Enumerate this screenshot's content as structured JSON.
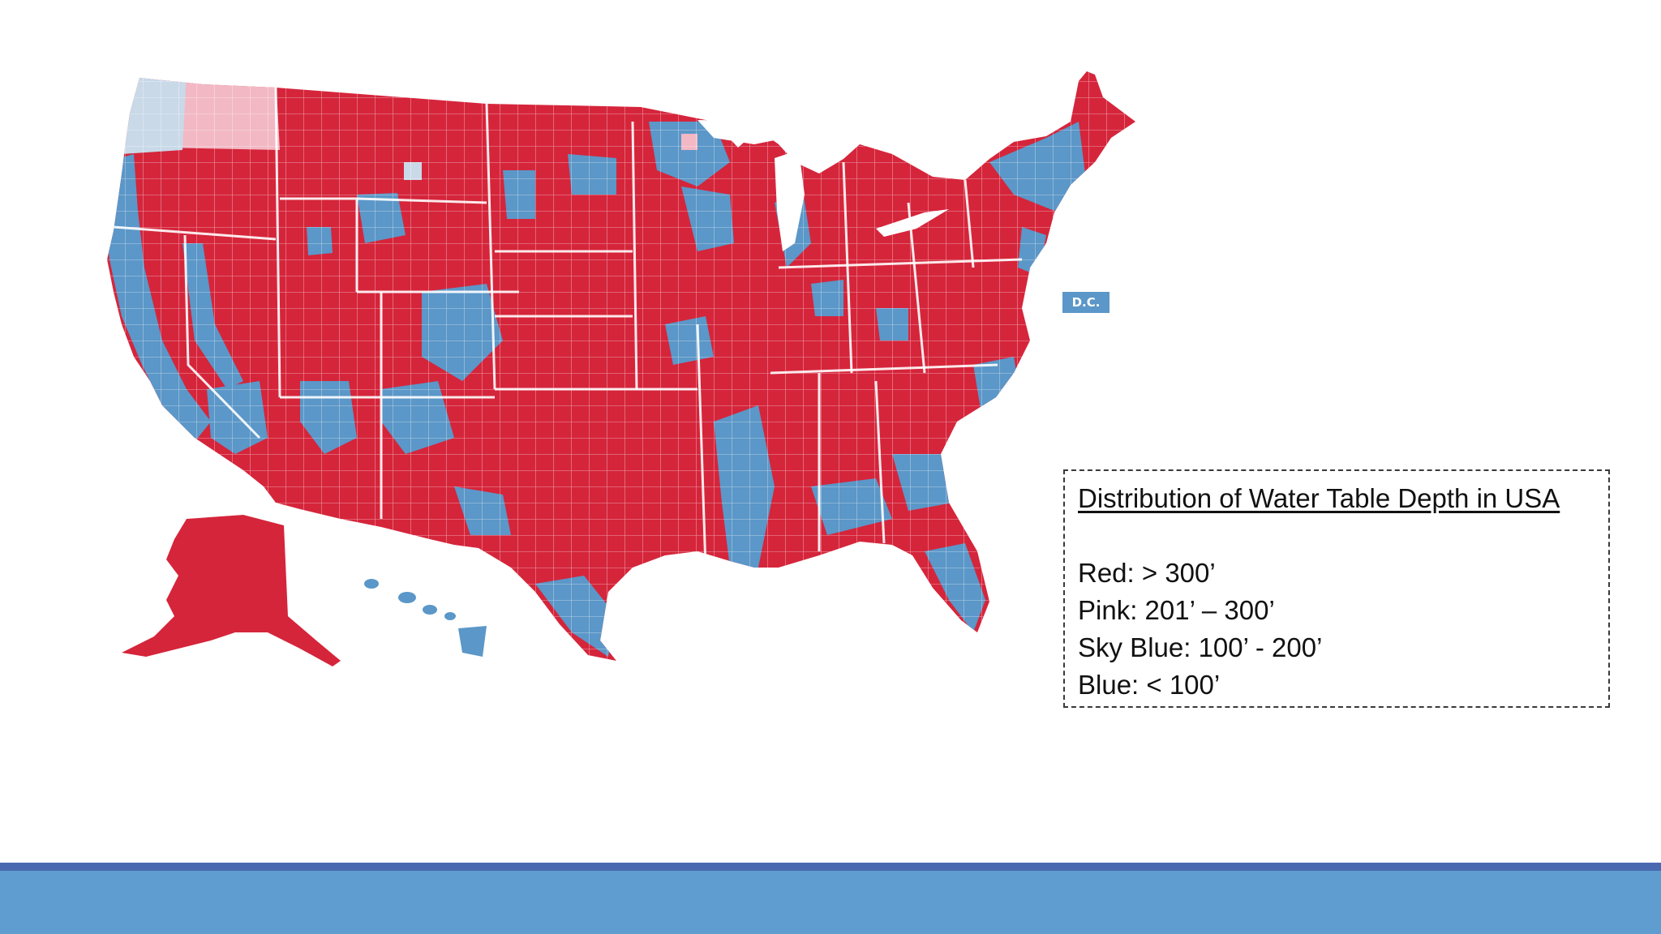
{
  "map": {
    "dc_label": "D.C.",
    "colors": {
      "red": "#d5253b",
      "pink": "#f2b8c4",
      "sky_blue": "#c9d9e8",
      "blue": "#5b97c8"
    }
  },
  "legend": {
    "title": "Distribution of Water Table Depth in USA",
    "items": [
      {
        "label": "Red: > 300’",
        "color": "#d5253b"
      },
      {
        "label": "Pink: 201’ – 300’",
        "color": "#f2b8c4"
      },
      {
        "label": "Sky Blue: 100’ - 200’",
        "color": "#c9d9e8"
      },
      {
        "label": "Blue: < 100’",
        "color": "#5b97c8"
      }
    ]
  },
  "footer": {
    "line_color": "#4a68b0",
    "band_color": "#5f9ccf"
  }
}
